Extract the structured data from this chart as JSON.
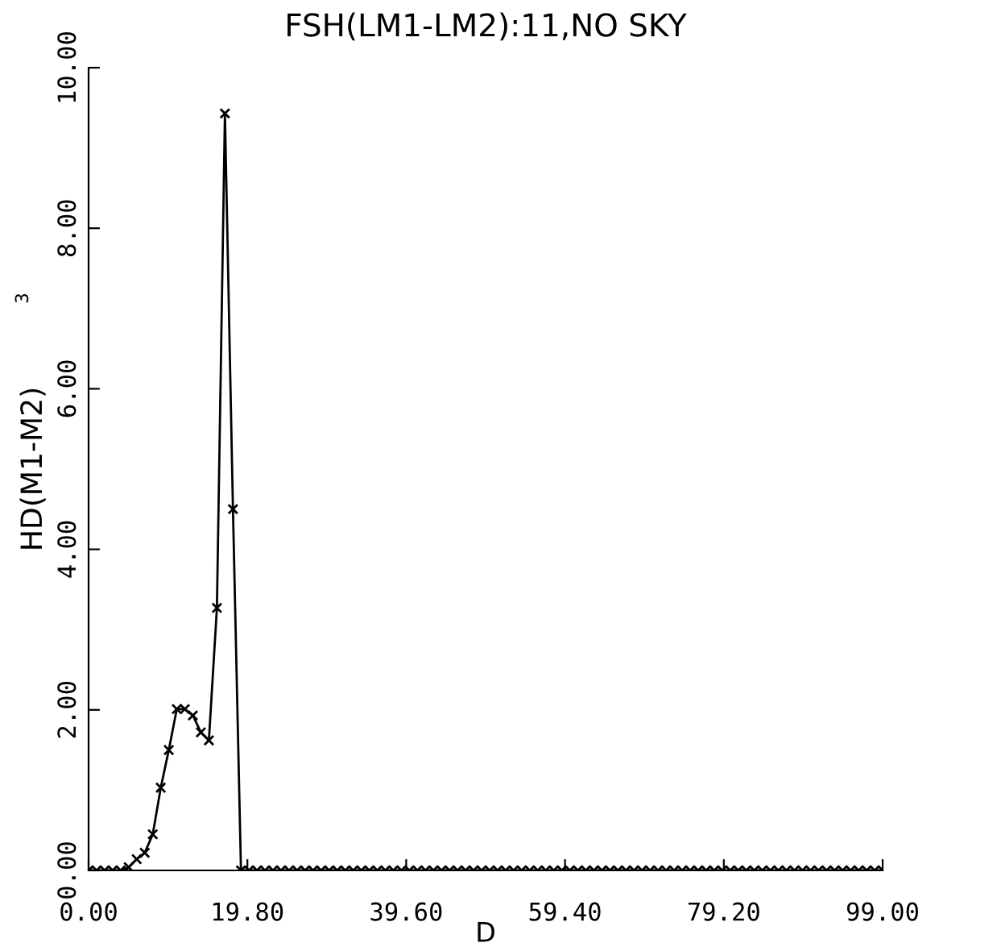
{
  "chart_data": {
    "type": "line",
    "title": "FSH(LM1-LM2):11,NO SKY",
    "xlabel": "D",
    "ylabel": "HD(M1-M2)",
    "annotations": [
      "3"
    ],
    "x": [
      0,
      1,
      2,
      3,
      4,
      5,
      6,
      7,
      8,
      9,
      10,
      11,
      12,
      13,
      14,
      15,
      16,
      17,
      18,
      19,
      20,
      21,
      22,
      23,
      24,
      25,
      26,
      27,
      28,
      29,
      30,
      31,
      32,
      33,
      34,
      35,
      36,
      37,
      38,
      39,
      40,
      41,
      42,
      43,
      44,
      45,
      46,
      47,
      48,
      49,
      50,
      51,
      52,
      53,
      54,
      55,
      56,
      57,
      58,
      59,
      60,
      61,
      62,
      63,
      64,
      65,
      66,
      67,
      68,
      69,
      70,
      71,
      72,
      73,
      74,
      75,
      76,
      77,
      78,
      79,
      80,
      81,
      82,
      83,
      84,
      85,
      86,
      87,
      88,
      89,
      90,
      91,
      92,
      93,
      94,
      95,
      96,
      97,
      98,
      99
    ],
    "series": [
      {
        "color": "#000000",
        "values": [
          0,
          0,
          0,
          0,
          0,
          0.04,
          0.14,
          0.22,
          0.45,
          1.03,
          1.5,
          2.01,
          2.01,
          1.93,
          1.72,
          1.62,
          3.27,
          9.43,
          4.5,
          0,
          0,
          0,
          0,
          0,
          0,
          0,
          0,
          0,
          0,
          0,
          0,
          0,
          0,
          0,
          0,
          0,
          0,
          0,
          0,
          0,
          0,
          0,
          0,
          0,
          0,
          0,
          0,
          0,
          0,
          0,
          0,
          0,
          0,
          0,
          0,
          0,
          0,
          0,
          0,
          0,
          0,
          0,
          0,
          0,
          0,
          0,
          0,
          0,
          0,
          0,
          0,
          0,
          0,
          0,
          0,
          0,
          0,
          0,
          0,
          0,
          0,
          0,
          0,
          0,
          0,
          0,
          0,
          0,
          0,
          0,
          0,
          0,
          0,
          0,
          0,
          0,
          0,
          0,
          0,
          0
        ]
      }
    ],
    "xlim": [
      0,
      99
    ],
    "xticks": [
      {
        "value": 0,
        "label": "0.00"
      },
      {
        "value": 19.8,
        "label": "19.80"
      },
      {
        "value": 39.6,
        "label": "39.60"
      },
      {
        "value": 59.4,
        "label": "59.40"
      },
      {
        "value": 79.2,
        "label": "79.20"
      },
      {
        "value": 99,
        "label": "99.00"
      }
    ],
    "ylim": [
      0,
      10
    ],
    "yticks": [
      {
        "value": 0,
        "label": "0.00"
      },
      {
        "value": 2,
        "label": "2.00"
      },
      {
        "value": 4,
        "label": "4.00"
      },
      {
        "value": 6,
        "label": "6.00"
      },
      {
        "value": 8,
        "label": "8.00"
      },
      {
        "value": 10,
        "label": "10.00"
      }
    ],
    "marker": "cross",
    "line_style": "solid",
    "grid": false,
    "legend": false
  }
}
